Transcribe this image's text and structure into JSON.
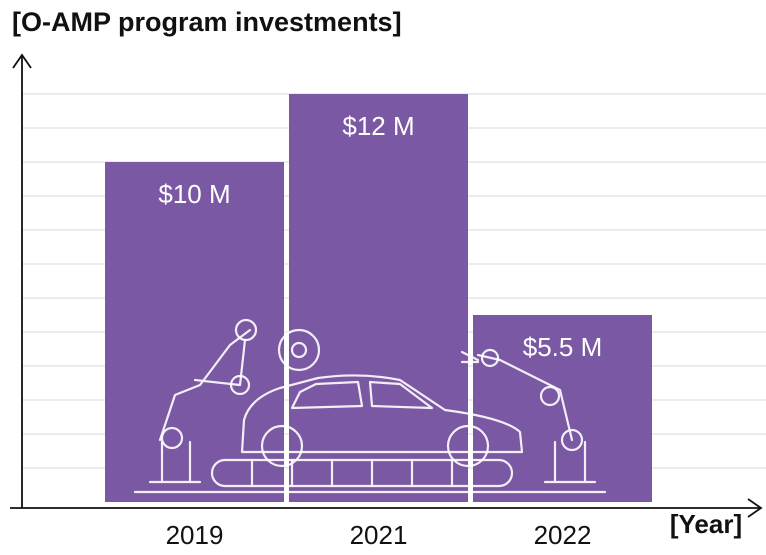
{
  "chart_data": {
    "type": "bar",
    "title": "[O-AMP program investments]",
    "x_label": "[Year]",
    "categories": [
      "2019",
      "2021",
      "2022"
    ],
    "values": [
      10,
      12,
      5.5
    ],
    "value_labels": [
      "$10 M",
      "$12 M",
      "$5.5 M"
    ],
    "color": "#7b58a3",
    "ylim": [
      0,
      13.5
    ],
    "yticks": [
      1,
      2,
      3,
      4,
      5,
      6,
      7,
      8,
      9,
      10,
      11,
      12
    ],
    "grid": true
  }
}
